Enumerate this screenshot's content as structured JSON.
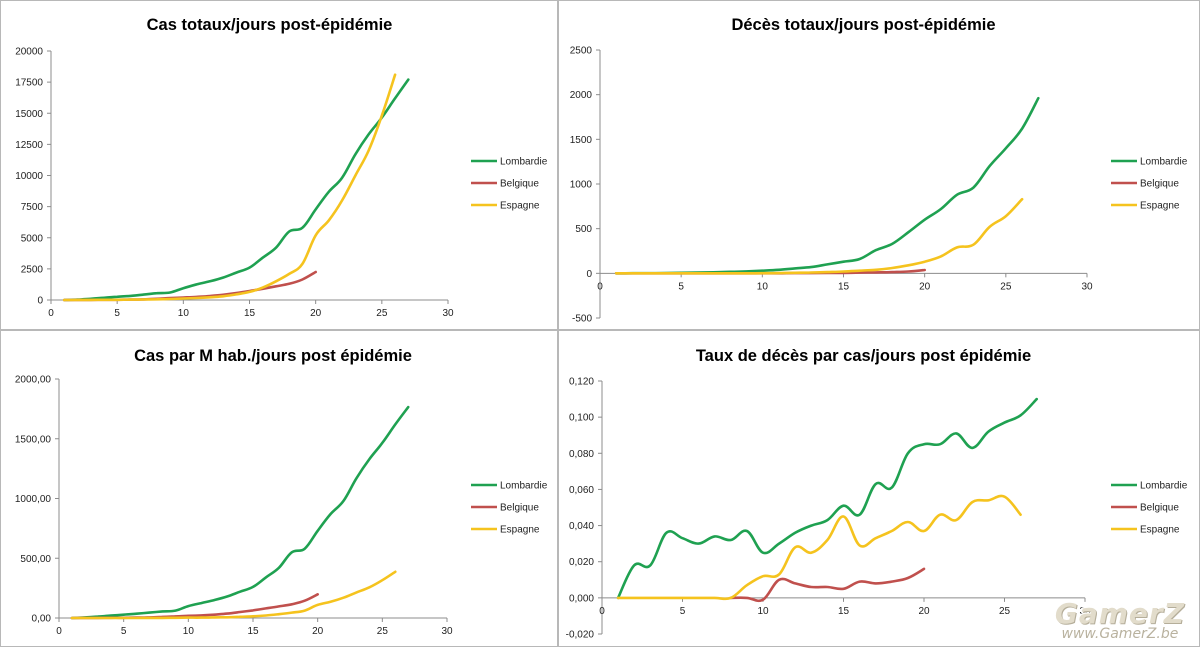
{
  "colors": {
    "Lombardie": "#1fa151",
    "Belgique": "#c0504d",
    "Espagne": "#f5c31e",
    "axis": "#8c8c8c"
  },
  "watermark": {
    "brand": "GamerZ",
    "url": "www.GamerZ.be"
  },
  "chart_data": [
    {
      "type": "line",
      "title": "Cas totaux/jours post-épidémie",
      "xlim": [
        0,
        30
      ],
      "xticks": [
        0,
        5,
        10,
        15,
        20,
        25,
        30
      ],
      "ylim": [
        0,
        20000
      ],
      "yticks": [
        0,
        2500,
        5000,
        7500,
        10000,
        12500,
        15000,
        17500,
        20000
      ],
      "ytick_decimals": 0,
      "legend": "right",
      "series": [
        {
          "name": "Lombardie",
          "color": "#1fa151",
          "x": [
            1,
            2,
            3,
            4,
            5,
            6,
            7,
            8,
            9,
            10,
            11,
            12,
            13,
            14,
            15,
            16,
            17,
            18,
            19,
            20,
            21,
            22,
            23,
            24,
            25,
            26,
            27
          ],
          "y": [
            0,
            30,
            100,
            180,
            260,
            330,
            430,
            550,
            600,
            950,
            1250,
            1500,
            1800,
            2200,
            2600,
            3400,
            4200,
            5500,
            5800,
            7280,
            8700,
            9820,
            11700,
            13300,
            14650,
            16200,
            17700
          ]
        },
        {
          "name": "Belgique",
          "color": "#c0504d",
          "x": [
            1,
            2,
            3,
            4,
            5,
            6,
            7,
            8,
            9,
            10,
            11,
            12,
            13,
            14,
            15,
            16,
            17,
            18,
            19,
            20
          ],
          "y": [
            0,
            5,
            10,
            15,
            20,
            30,
            50,
            100,
            150,
            200,
            250,
            320,
            420,
            560,
            720,
            900,
            1100,
            1300,
            1650,
            2250
          ]
        },
        {
          "name": "Espagne",
          "color": "#f5c31e",
          "x": [
            1,
            2,
            3,
            4,
            5,
            6,
            7,
            8,
            9,
            10,
            11,
            12,
            13,
            14,
            15,
            16,
            17,
            18,
            19,
            20,
            21,
            22,
            23,
            24,
            25,
            26
          ],
          "y": [
            0,
            5,
            10,
            15,
            20,
            30,
            40,
            60,
            80,
            120,
            160,
            220,
            300,
            450,
            650,
            1000,
            1500,
            2100,
            2900,
            5200,
            6400,
            8000,
            10000,
            12000,
            14800,
            18100
          ]
        }
      ]
    },
    {
      "type": "line",
      "title": "Décès totaux/jours post-épidémie",
      "xlim": [
        0,
        30
      ],
      "xticks": [
        0,
        5,
        10,
        15,
        20,
        25,
        30
      ],
      "ylim": [
        -500,
        2500
      ],
      "yticks": [
        -500,
        0,
        500,
        1000,
        1500,
        2000,
        2500
      ],
      "ytick_decimals": 0,
      "legend": "right",
      "series": [
        {
          "name": "Lombardie",
          "color": "#1fa151",
          "x": [
            1,
            2,
            3,
            4,
            5,
            6,
            7,
            8,
            9,
            10,
            11,
            12,
            13,
            14,
            15,
            16,
            17,
            18,
            19,
            20,
            21,
            22,
            23,
            24,
            25,
            26,
            27
          ],
          "y": [
            0,
            1,
            2,
            4,
            6,
            8,
            12,
            17,
            22,
            30,
            40,
            55,
            70,
            100,
            130,
            160,
            260,
            330,
            460,
            600,
            720,
            880,
            960,
            1200,
            1400,
            1620,
            1960
          ]
        },
        {
          "name": "Belgique",
          "color": "#c0504d",
          "x": [
            1,
            2,
            3,
            4,
            5,
            6,
            7,
            8,
            9,
            10,
            11,
            12,
            13,
            14,
            15,
            16,
            17,
            18,
            19,
            20
          ],
          "y": [
            0,
            0,
            0,
            0,
            0,
            0,
            0,
            0,
            0,
            0,
            0,
            3,
            3,
            4,
            4,
            8,
            10,
            14,
            21,
            37
          ]
        },
        {
          "name": "Espagne",
          "color": "#f5c31e",
          "x": [
            1,
            2,
            3,
            4,
            5,
            6,
            7,
            8,
            9,
            10,
            11,
            12,
            13,
            14,
            15,
            16,
            17,
            18,
            19,
            20,
            21,
            22,
            23,
            24,
            25,
            26
          ],
          "y": [
            0,
            0,
            0,
            0,
            0,
            0,
            0,
            0,
            0,
            1,
            3,
            6,
            9,
            14,
            20,
            30,
            40,
            60,
            90,
            130,
            190,
            290,
            320,
            520,
            640,
            830
          ]
        }
      ]
    },
    {
      "type": "line",
      "title": "Cas par M hab./jours post épidémie",
      "xlim": [
        0,
        30
      ],
      "xticks": [
        0,
        5,
        10,
        15,
        20,
        25,
        30
      ],
      "ylim": [
        0,
        2000
      ],
      "yticks": [
        0,
        500,
        1000,
        1500,
        2000
      ],
      "ytick_decimals": 2,
      "legend": "right",
      "series": [
        {
          "name": "Lombardie",
          "color": "#1fa151",
          "x": [
            1,
            2,
            3,
            4,
            5,
            6,
            7,
            8,
            9,
            10,
            11,
            12,
            13,
            14,
            15,
            16,
            17,
            18,
            19,
            20,
            21,
            22,
            23,
            24,
            25,
            26,
            27
          ],
          "y": [
            0,
            5,
            12,
            20,
            28,
            36,
            45,
            55,
            62,
            100,
            125,
            150,
            180,
            220,
            260,
            340,
            420,
            550,
            580,
            730,
            870,
            980,
            1170,
            1330,
            1465,
            1620,
            1765
          ]
        },
        {
          "name": "Belgique",
          "color": "#c0504d",
          "x": [
            1,
            2,
            3,
            4,
            5,
            6,
            7,
            8,
            9,
            10,
            11,
            12,
            13,
            14,
            15,
            16,
            17,
            18,
            19,
            20
          ],
          "y": [
            0,
            1,
            1,
            2,
            2,
            3,
            5,
            9,
            13,
            18,
            22,
            28,
            37,
            50,
            64,
            80,
            97,
            115,
            145,
            198
          ]
        },
        {
          "name": "Espagne",
          "color": "#f5c31e",
          "x": [
            1,
            2,
            3,
            4,
            5,
            6,
            7,
            8,
            9,
            10,
            11,
            12,
            13,
            14,
            15,
            16,
            17,
            18,
            19,
            20,
            21,
            22,
            23,
            24,
            25,
            26
          ],
          "y": [
            0,
            0,
            0,
            0,
            0,
            0,
            1,
            1,
            2,
            3,
            3,
            5,
            6,
            10,
            14,
            21,
            32,
            45,
            62,
            110,
            136,
            170,
            214,
            257,
            316,
            387
          ]
        }
      ]
    },
    {
      "type": "line",
      "title": "Taux de décès par cas/jours post épidémie",
      "xlim": [
        0,
        30
      ],
      "xticks": [
        0,
        5,
        10,
        15,
        20,
        25,
        30
      ],
      "ylim": [
        -0.02,
        0.12
      ],
      "yticks": [
        -0.02,
        0,
        0.02,
        0.04,
        0.06,
        0.08,
        0.1,
        0.12
      ],
      "ytick_decimals": 3,
      "legend": "right",
      "series": [
        {
          "name": "Lombardie",
          "color": "#1fa151",
          "x": [
            1,
            2,
            3,
            4,
            5,
            6,
            7,
            8,
            9,
            10,
            11,
            12,
            13,
            14,
            15,
            16,
            17,
            18,
            19,
            20,
            21,
            22,
            23,
            24,
            25,
            26,
            27
          ],
          "y": [
            0,
            0.018,
            0.018,
            0.036,
            0.033,
            0.03,
            0.034,
            0.032,
            0.037,
            0.025,
            0.03,
            0.036,
            0.04,
            0.043,
            0.051,
            0.046,
            0.063,
            0.061,
            0.08,
            0.085,
            0.085,
            0.091,
            0.083,
            0.092,
            0.097,
            0.101,
            0.11
          ]
        },
        {
          "name": "Belgique",
          "color": "#c0504d",
          "x": [
            8,
            9,
            10,
            11,
            12,
            13,
            14,
            15,
            16,
            17,
            18,
            19,
            20
          ],
          "y": [
            0,
            0,
            -0.001,
            0.01,
            0.008,
            0.006,
            0.006,
            0.005,
            0.009,
            0.008,
            0.009,
            0.011,
            0.016
          ]
        },
        {
          "name": "Espagne",
          "color": "#f5c31e",
          "x": [
            1,
            2,
            3,
            4,
            5,
            6,
            7,
            8,
            9,
            10,
            11,
            12,
            13,
            14,
            15,
            16,
            17,
            18,
            19,
            20,
            21,
            22,
            23,
            24,
            25,
            26
          ],
          "y": [
            0,
            0,
            0,
            0,
            0,
            0,
            0,
            0,
            0.007,
            0.012,
            0.013,
            0.028,
            0.025,
            0.032,
            0.045,
            0.029,
            0.033,
            0.037,
            0.042,
            0.037,
            0.046,
            0.043,
            0.053,
            0.054,
            0.056,
            0.046
          ]
        }
      ]
    }
  ]
}
